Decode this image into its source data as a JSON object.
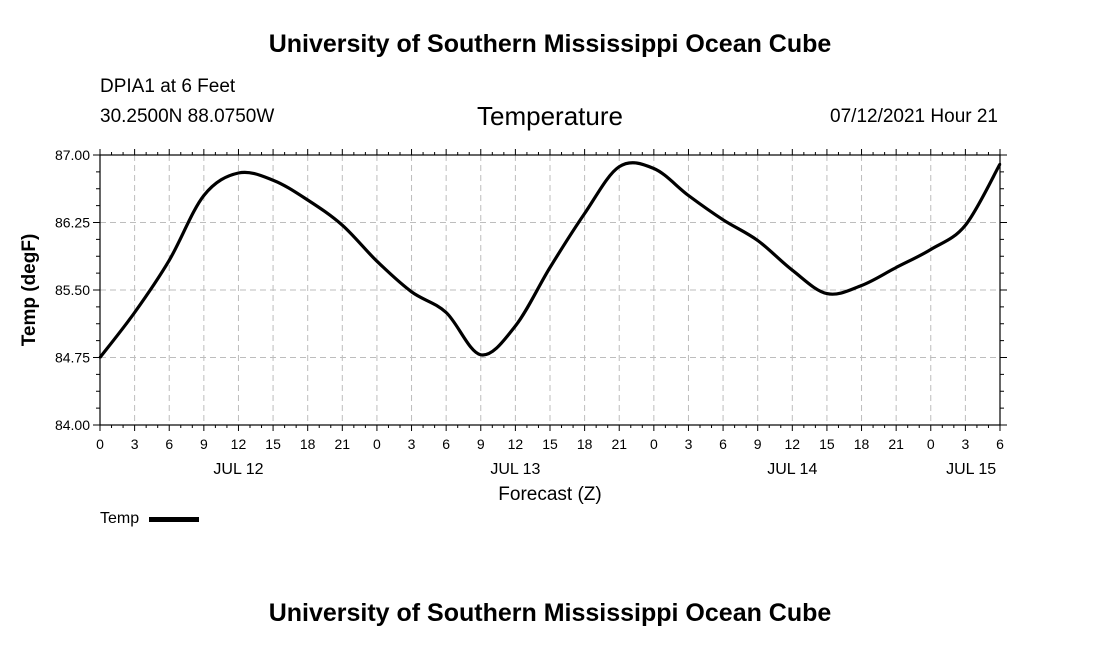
{
  "header": {
    "title": "University of Southern Mississippi Ocean Cube",
    "station": "DPIA1 at 6 Feet",
    "coords": "30.2500N  88.0750W",
    "timestamp": "07/12/2021 Hour 21"
  },
  "footer": {
    "title": "University of Southern Mississippi Ocean Cube"
  },
  "chart_data": {
    "type": "line",
    "title": "Temperature",
    "xlabel": "Forecast (Z)",
    "ylabel": "Temp (degF)",
    "ylim": [
      84.0,
      87.0
    ],
    "xlim": [
      0,
      78
    ],
    "grid": true,
    "y_ticks": [
      84.0,
      84.75,
      85.5,
      86.25,
      87.0
    ],
    "y_tick_labels": [
      "84.00",
      "84.75",
      "85.50",
      "86.25",
      "87.00"
    ],
    "x_ticks": [
      0,
      3,
      6,
      9,
      12,
      15,
      18,
      21,
      24,
      27,
      30,
      33,
      36,
      39,
      42,
      45,
      48,
      51,
      54,
      57,
      60,
      63,
      66,
      69,
      72,
      75,
      78
    ],
    "x_tick_labels": [
      "0",
      "3",
      "6",
      "9",
      "12",
      "15",
      "18",
      "21",
      "0",
      "3",
      "6",
      "9",
      "12",
      "15",
      "18",
      "21",
      "0",
      "3",
      "6",
      "9",
      "12",
      "15",
      "18",
      "21",
      "0",
      "3",
      "6"
    ],
    "day_labels": [
      {
        "hour": 12,
        "label": "JUL 12"
      },
      {
        "hour": 36,
        "label": "JUL 13"
      },
      {
        "hour": 60,
        "label": "JUL 14"
      },
      {
        "hour": 75.5,
        "label": "JUL 15"
      }
    ],
    "legend": [
      {
        "name": "Temp",
        "color": "#000000"
      }
    ],
    "series": [
      {
        "name": "Temp",
        "x": [
          0,
          3,
          6,
          9,
          12,
          15,
          18,
          21,
          24,
          27,
          30,
          33,
          36,
          39,
          42,
          45,
          48,
          51,
          54,
          57,
          60,
          63,
          66,
          69,
          72,
          75,
          78
        ],
        "values": [
          84.75,
          85.25,
          85.83,
          86.55,
          86.8,
          86.72,
          86.5,
          86.22,
          85.82,
          85.48,
          85.25,
          84.78,
          85.1,
          85.75,
          86.35,
          86.87,
          86.85,
          86.55,
          86.28,
          86.05,
          85.72,
          85.46,
          85.55,
          85.75,
          85.95,
          86.22,
          86.9
        ]
      }
    ]
  }
}
